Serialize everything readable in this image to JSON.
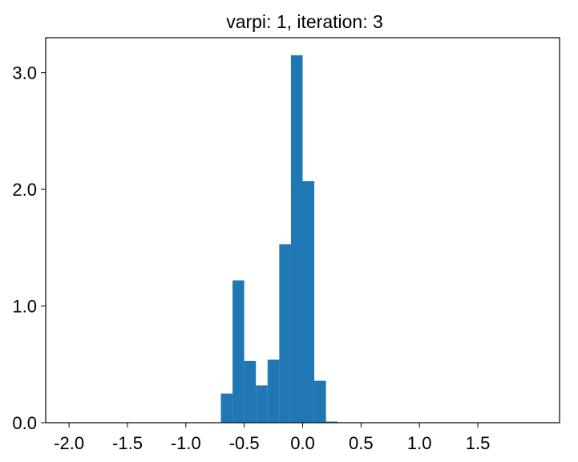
{
  "chart_data": {
    "type": "bar",
    "title": "varpi: 1, iteration: 3",
    "xlabel": "",
    "ylabel": "",
    "xlim": [
      -2.2,
      2.2
    ],
    "ylim": [
      0,
      3.3
    ],
    "xticks": [
      -2.0,
      -1.5,
      -1.0,
      -0.5,
      0.0,
      0.5,
      1.0,
      1.5
    ],
    "xtick_labels": [
      "-2.0",
      "-1.5",
      "-1.0",
      "-0.5",
      "0.0",
      "0.5",
      "1.0",
      "1.5"
    ],
    "yticks": [
      0.0,
      1.0,
      2.0,
      3.0
    ],
    "ytick_labels": [
      "0.0",
      "1.0",
      "2.0",
      "3.0"
    ],
    "bin_width": 0.1,
    "bin_lefts": [
      -0.7,
      -0.6,
      -0.5,
      -0.4,
      -0.3,
      -0.2,
      -0.1,
      0.0,
      0.1,
      0.2
    ],
    "values": [
      0.25,
      1.22,
      0.53,
      0.32,
      0.54,
      1.53,
      3.15,
      2.07,
      0.36,
      0.01
    ],
    "bar_color": "#1f77b4",
    "grid": false,
    "legend": "none"
  }
}
